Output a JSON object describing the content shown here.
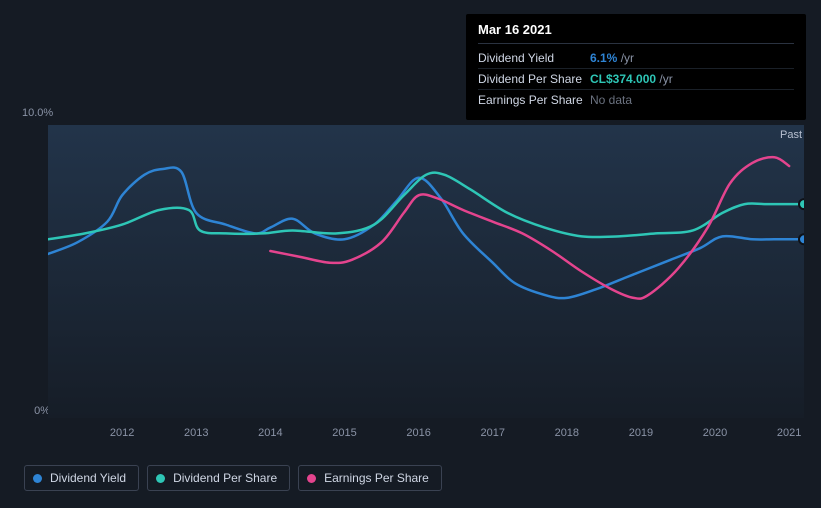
{
  "tooltip": {
    "date": "Mar 16 2021",
    "rows": [
      {
        "label": "Dividend Yield",
        "value": "6.1%",
        "suffix": "/yr",
        "color": "#2e84d4"
      },
      {
        "label": "Dividend Per Share",
        "value": "CL$374.000",
        "suffix": "/yr",
        "color": "#2ec6b6"
      },
      {
        "label": "Earnings Per Share",
        "value": null,
        "nodata": "No data",
        "color": "#e4448e"
      }
    ]
  },
  "chart": {
    "type": "line",
    "background_color": "#151b24",
    "plot_gradient_top": "#22344a",
    "plot_gradient_bottom": "#161d27",
    "grid_color": "#2a3240",
    "past_label": "Past",
    "y_top_label": "10.0%",
    "y_bot_label": "0%",
    "xlim": [
      2011,
      2021.2
    ],
    "ylim": [
      0,
      10
    ],
    "x_ticks": [
      2012,
      2013,
      2014,
      2015,
      2016,
      2017,
      2018,
      2019,
      2020,
      2021
    ],
    "line_width": 2.5,
    "marker_radius": 5,
    "series": [
      {
        "name": "Dividend Yield",
        "color": "#2e84d4",
        "end_marker": true,
        "points": [
          [
            2011.0,
            5.6
          ],
          [
            2011.4,
            6.0
          ],
          [
            2011.8,
            6.7
          ],
          [
            2012.0,
            7.6
          ],
          [
            2012.3,
            8.3
          ],
          [
            2012.55,
            8.5
          ],
          [
            2012.8,
            8.4
          ],
          [
            2013.0,
            7.0
          ],
          [
            2013.4,
            6.6
          ],
          [
            2013.8,
            6.3
          ],
          [
            2014.0,
            6.5
          ],
          [
            2014.3,
            6.8
          ],
          [
            2014.6,
            6.3
          ],
          [
            2015.0,
            6.1
          ],
          [
            2015.4,
            6.6
          ],
          [
            2015.7,
            7.4
          ],
          [
            2016.0,
            8.2
          ],
          [
            2016.3,
            7.5
          ],
          [
            2016.6,
            6.3
          ],
          [
            2017.0,
            5.3
          ],
          [
            2017.3,
            4.6
          ],
          [
            2017.7,
            4.2
          ],
          [
            2018.0,
            4.1
          ],
          [
            2018.4,
            4.4
          ],
          [
            2018.8,
            4.8
          ],
          [
            2019.0,
            5.0
          ],
          [
            2019.4,
            5.4
          ],
          [
            2019.8,
            5.8
          ],
          [
            2020.1,
            6.2
          ],
          [
            2020.5,
            6.1
          ],
          [
            2020.8,
            6.1
          ],
          [
            2021.2,
            6.1
          ]
        ]
      },
      {
        "name": "Dividend Per Share",
        "color": "#2ec6b6",
        "end_marker": true,
        "points": [
          [
            2011.0,
            6.1
          ],
          [
            2011.5,
            6.3
          ],
          [
            2012.0,
            6.6
          ],
          [
            2012.5,
            7.1
          ],
          [
            2012.9,
            7.1
          ],
          [
            2013.05,
            6.4
          ],
          [
            2013.4,
            6.3
          ],
          [
            2013.9,
            6.3
          ],
          [
            2014.3,
            6.4
          ],
          [
            2014.9,
            6.3
          ],
          [
            2015.4,
            6.6
          ],
          [
            2015.8,
            7.6
          ],
          [
            2016.1,
            8.3
          ],
          [
            2016.35,
            8.3
          ],
          [
            2016.7,
            7.8
          ],
          [
            2017.2,
            7.0
          ],
          [
            2017.7,
            6.5
          ],
          [
            2018.2,
            6.2
          ],
          [
            2018.7,
            6.2
          ],
          [
            2019.2,
            6.3
          ],
          [
            2019.7,
            6.4
          ],
          [
            2020.1,
            7.0
          ],
          [
            2020.4,
            7.3
          ],
          [
            2020.7,
            7.3
          ],
          [
            2021.2,
            7.3
          ]
        ]
      },
      {
        "name": "Earnings Per Share",
        "color": "#e4448e",
        "end_marker": false,
        "points": [
          [
            2014.0,
            5.7
          ],
          [
            2014.4,
            5.5
          ],
          [
            2014.8,
            5.3
          ],
          [
            2015.1,
            5.4
          ],
          [
            2015.5,
            6.0
          ],
          [
            2015.8,
            7.0
          ],
          [
            2016.0,
            7.6
          ],
          [
            2016.25,
            7.5
          ],
          [
            2016.6,
            7.1
          ],
          [
            2017.0,
            6.7
          ],
          [
            2017.4,
            6.3
          ],
          [
            2017.8,
            5.7
          ],
          [
            2018.2,
            5.0
          ],
          [
            2018.6,
            4.4
          ],
          [
            2018.9,
            4.1
          ],
          [
            2019.1,
            4.2
          ],
          [
            2019.5,
            5.1
          ],
          [
            2019.9,
            6.5
          ],
          [
            2020.2,
            8.0
          ],
          [
            2020.5,
            8.7
          ],
          [
            2020.8,
            8.9
          ],
          [
            2021.0,
            8.6
          ]
        ]
      }
    ]
  },
  "legend": [
    {
      "label": "Dividend Yield",
      "color": "#2e84d4"
    },
    {
      "label": "Dividend Per Share",
      "color": "#2ec6b6"
    },
    {
      "label": "Earnings Per Share",
      "color": "#e4448e"
    }
  ]
}
